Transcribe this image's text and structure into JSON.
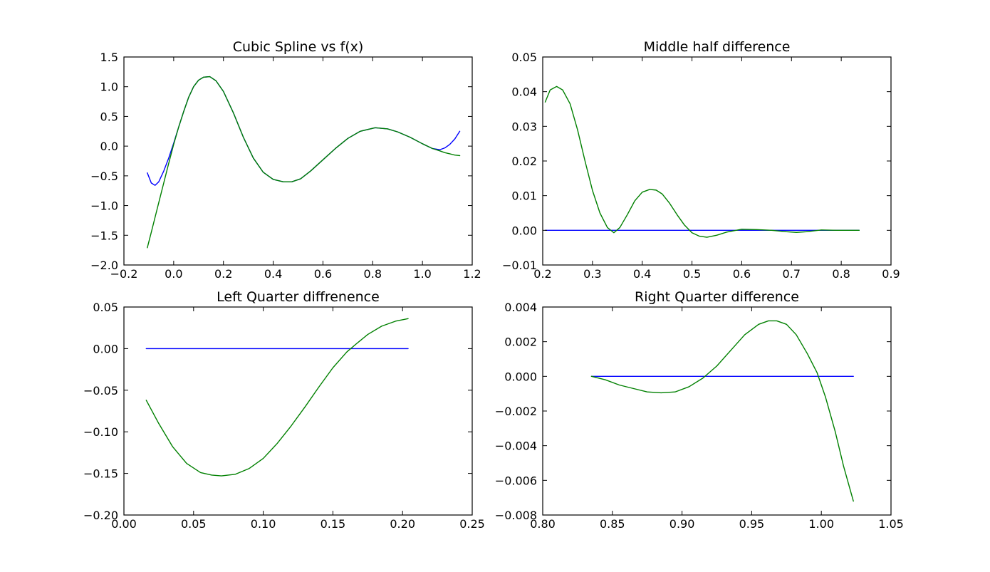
{
  "colors": {
    "series_blue": "#0000ff",
    "series_green": "#008000"
  },
  "chart_data": [
    {
      "type": "line",
      "title": "Cubic Spline vs f(x)",
      "xlabel": "",
      "ylabel": "",
      "xlim": [
        -0.2,
        1.2
      ],
      "ylim": [
        -2.0,
        1.5
      ],
      "xticks": [
        -0.2,
        0.0,
        0.2,
        0.4,
        0.6,
        0.8,
        1.0,
        1.2
      ],
      "xtick_labels": [
        "−0.2",
        "0.0",
        "0.2",
        "0.4",
        "0.6",
        "0.8",
        "1.0",
        "1.2"
      ],
      "yticks": [
        -2.0,
        -1.5,
        -1.0,
        -0.5,
        0.0,
        0.5,
        1.0,
        1.5
      ],
      "ytick_labels": [
        "−2.0",
        "−1.5",
        "−1.0",
        "−0.5",
        "0.0",
        "0.5",
        "1.0",
        "1.5"
      ],
      "grid": false,
      "series": [
        {
          "color": "#0000ff",
          "x": [
            -0.106,
            -0.09,
            -0.075,
            -0.06,
            -0.04,
            -0.02,
            0.0,
            0.02,
            0.04,
            0.06,
            0.08,
            0.1,
            0.12,
            0.145,
            0.17,
            0.2,
            0.24,
            0.28,
            0.32,
            0.36,
            0.4,
            0.44,
            0.475,
            0.51,
            0.55,
            0.6,
            0.65,
            0.7,
            0.75,
            0.81,
            0.86,
            0.9,
            0.95,
            1.0,
            1.04,
            1.07,
            1.09,
            1.11,
            1.13,
            1.15
          ],
          "y": [
            -0.45,
            -0.62,
            -0.66,
            -0.6,
            -0.42,
            -0.2,
            0.05,
            0.32,
            0.58,
            0.82,
            1.0,
            1.11,
            1.16,
            1.17,
            1.1,
            0.92,
            0.56,
            0.15,
            -0.2,
            -0.44,
            -0.56,
            -0.6,
            -0.6,
            -0.55,
            -0.42,
            -0.23,
            -0.04,
            0.13,
            0.25,
            0.31,
            0.29,
            0.24,
            0.15,
            0.04,
            -0.04,
            -0.06,
            -0.03,
            0.03,
            0.12,
            0.25
          ]
        },
        {
          "color": "#008000",
          "x": [
            -0.106,
            -0.09,
            -0.075,
            -0.06,
            -0.04,
            -0.02,
            0.0,
            0.02,
            0.04,
            0.06,
            0.08,
            0.1,
            0.12,
            0.145,
            0.17,
            0.2,
            0.24,
            0.28,
            0.32,
            0.36,
            0.4,
            0.44,
            0.475,
            0.51,
            0.55,
            0.6,
            0.65,
            0.7,
            0.75,
            0.81,
            0.86,
            0.9,
            0.95,
            1.0,
            1.04,
            1.07,
            1.09,
            1.11,
            1.13,
            1.15
          ],
          "y": [
            -1.71,
            -1.45,
            -1.2,
            -0.95,
            -0.62,
            -0.29,
            0.03,
            0.32,
            0.58,
            0.82,
            1.0,
            1.11,
            1.16,
            1.17,
            1.1,
            0.92,
            0.56,
            0.15,
            -0.2,
            -0.44,
            -0.56,
            -0.6,
            -0.6,
            -0.55,
            -0.42,
            -0.23,
            -0.04,
            0.13,
            0.25,
            0.31,
            0.29,
            0.24,
            0.15,
            0.04,
            -0.04,
            -0.08,
            -0.11,
            -0.13,
            -0.15,
            -0.16
          ]
        }
      ]
    },
    {
      "type": "line",
      "title": "Middle half difference",
      "xlabel": "",
      "ylabel": "",
      "xlim": [
        0.2,
        0.9
      ],
      "ylim": [
        -0.01,
        0.05
      ],
      "xticks": [
        0.2,
        0.3,
        0.4,
        0.5,
        0.6,
        0.7,
        0.8,
        0.9
      ],
      "xtick_labels": [
        "0.2",
        "0.3",
        "0.4",
        "0.5",
        "0.6",
        "0.7",
        "0.8",
        "0.9"
      ],
      "yticks": [
        -0.01,
        0.0,
        0.01,
        0.02,
        0.03,
        0.04,
        0.05
      ],
      "ytick_labels": [
        "−0.01",
        "0.00",
        "0.01",
        "0.02",
        "0.03",
        "0.04",
        "0.05"
      ],
      "grid": false,
      "series": [
        {
          "color": "#0000ff",
          "x": [
            0.205,
            0.836
          ],
          "y": [
            0.0,
            0.0
          ]
        },
        {
          "color": "#008000",
          "x": [
            0.205,
            0.215,
            0.228,
            0.24,
            0.255,
            0.27,
            0.285,
            0.3,
            0.315,
            0.33,
            0.343,
            0.355,
            0.37,
            0.385,
            0.4,
            0.415,
            0.428,
            0.44,
            0.455,
            0.47,
            0.485,
            0.5,
            0.515,
            0.53,
            0.55,
            0.57,
            0.6,
            0.63,
            0.66,
            0.69,
            0.71,
            0.73,
            0.76,
            0.79,
            0.82,
            0.836
          ],
          "y": [
            0.037,
            0.0405,
            0.0415,
            0.0405,
            0.0365,
            0.029,
            0.02,
            0.0115,
            0.005,
            0.0008,
            -0.0007,
            0.0008,
            0.0045,
            0.0085,
            0.011,
            0.0118,
            0.0116,
            0.0105,
            0.0078,
            0.0045,
            0.0015,
            -0.0007,
            -0.0017,
            -0.002,
            -0.0014,
            -0.0005,
            0.0003,
            0.0002,
            0.0,
            -0.0004,
            -0.0006,
            -0.0004,
            0.0001,
            0.0,
            0.0,
            0.0
          ]
        }
      ]
    },
    {
      "type": "line",
      "title": "Left Quarter diffrenence",
      "xlabel": "",
      "ylabel": "",
      "xlim": [
        0.0,
        0.25
      ],
      "ylim": [
        -0.2,
        0.05
      ],
      "xticks": [
        0.0,
        0.05,
        0.1,
        0.15,
        0.2,
        0.25
      ],
      "xtick_labels": [
        "0.00",
        "0.05",
        "0.10",
        "0.15",
        "0.20",
        "0.25"
      ],
      "yticks": [
        -0.2,
        -0.15,
        -0.1,
        -0.05,
        0.0,
        0.05
      ],
      "ytick_labels": [
        "−0.20",
        "−0.15",
        "−0.10",
        "−0.05",
        "0.00",
        "0.05"
      ],
      "grid": false,
      "series": [
        {
          "color": "#0000ff",
          "x": [
            0.016,
            0.204
          ],
          "y": [
            0.0,
            0.0
          ]
        },
        {
          "color": "#008000",
          "x": [
            0.016,
            0.025,
            0.035,
            0.045,
            0.055,
            0.063,
            0.07,
            0.08,
            0.09,
            0.1,
            0.11,
            0.12,
            0.13,
            0.14,
            0.15,
            0.16,
            0.167,
            0.175,
            0.185,
            0.195,
            0.204
          ],
          "y": [
            -0.062,
            -0.09,
            -0.118,
            -0.138,
            -0.149,
            -0.152,
            -0.153,
            -0.151,
            -0.144,
            -0.132,
            -0.114,
            -0.093,
            -0.07,
            -0.046,
            -0.023,
            -0.004,
            0.006,
            0.017,
            0.027,
            0.033,
            0.036
          ]
        }
      ]
    },
    {
      "type": "line",
      "title": "Right Quarter difference",
      "xlabel": "",
      "ylabel": "",
      "xlim": [
        0.8,
        1.05
      ],
      "ylim": [
        -0.008,
        0.004
      ],
      "xticks": [
        0.8,
        0.85,
        0.9,
        0.95,
        1.0,
        1.05
      ],
      "xtick_labels": [
        "0.80",
        "0.85",
        "0.90",
        "0.95",
        "1.00",
        "1.05"
      ],
      "yticks": [
        -0.008,
        -0.006,
        -0.004,
        -0.002,
        0.0,
        0.002,
        0.004
      ],
      "ytick_labels": [
        "−0.008",
        "−0.006",
        "−0.004",
        "−0.002",
        "0.000",
        "0.002",
        "0.004"
      ],
      "grid": false,
      "series": [
        {
          "color": "#0000ff",
          "x": [
            0.835,
            1.023
          ],
          "y": [
            0.0,
            0.0
          ]
        },
        {
          "color": "#008000",
          "x": [
            0.835,
            0.845,
            0.855,
            0.865,
            0.875,
            0.885,
            0.895,
            0.905,
            0.915,
            0.925,
            0.935,
            0.945,
            0.955,
            0.962,
            0.968,
            0.975,
            0.982,
            0.99,
            0.997,
            1.003,
            1.01,
            1.016,
            1.023
          ],
          "y": [
            0.0,
            -0.0002,
            -0.0005,
            -0.0007,
            -0.0009,
            -0.00095,
            -0.0009,
            -0.0006,
            -0.0001,
            0.0006,
            0.0015,
            0.0024,
            0.003,
            0.0032,
            0.0032,
            0.003,
            0.0024,
            0.0013,
            0.0002,
            -0.0012,
            -0.0032,
            -0.0052,
            -0.0072
          ]
        }
      ]
    }
  ]
}
